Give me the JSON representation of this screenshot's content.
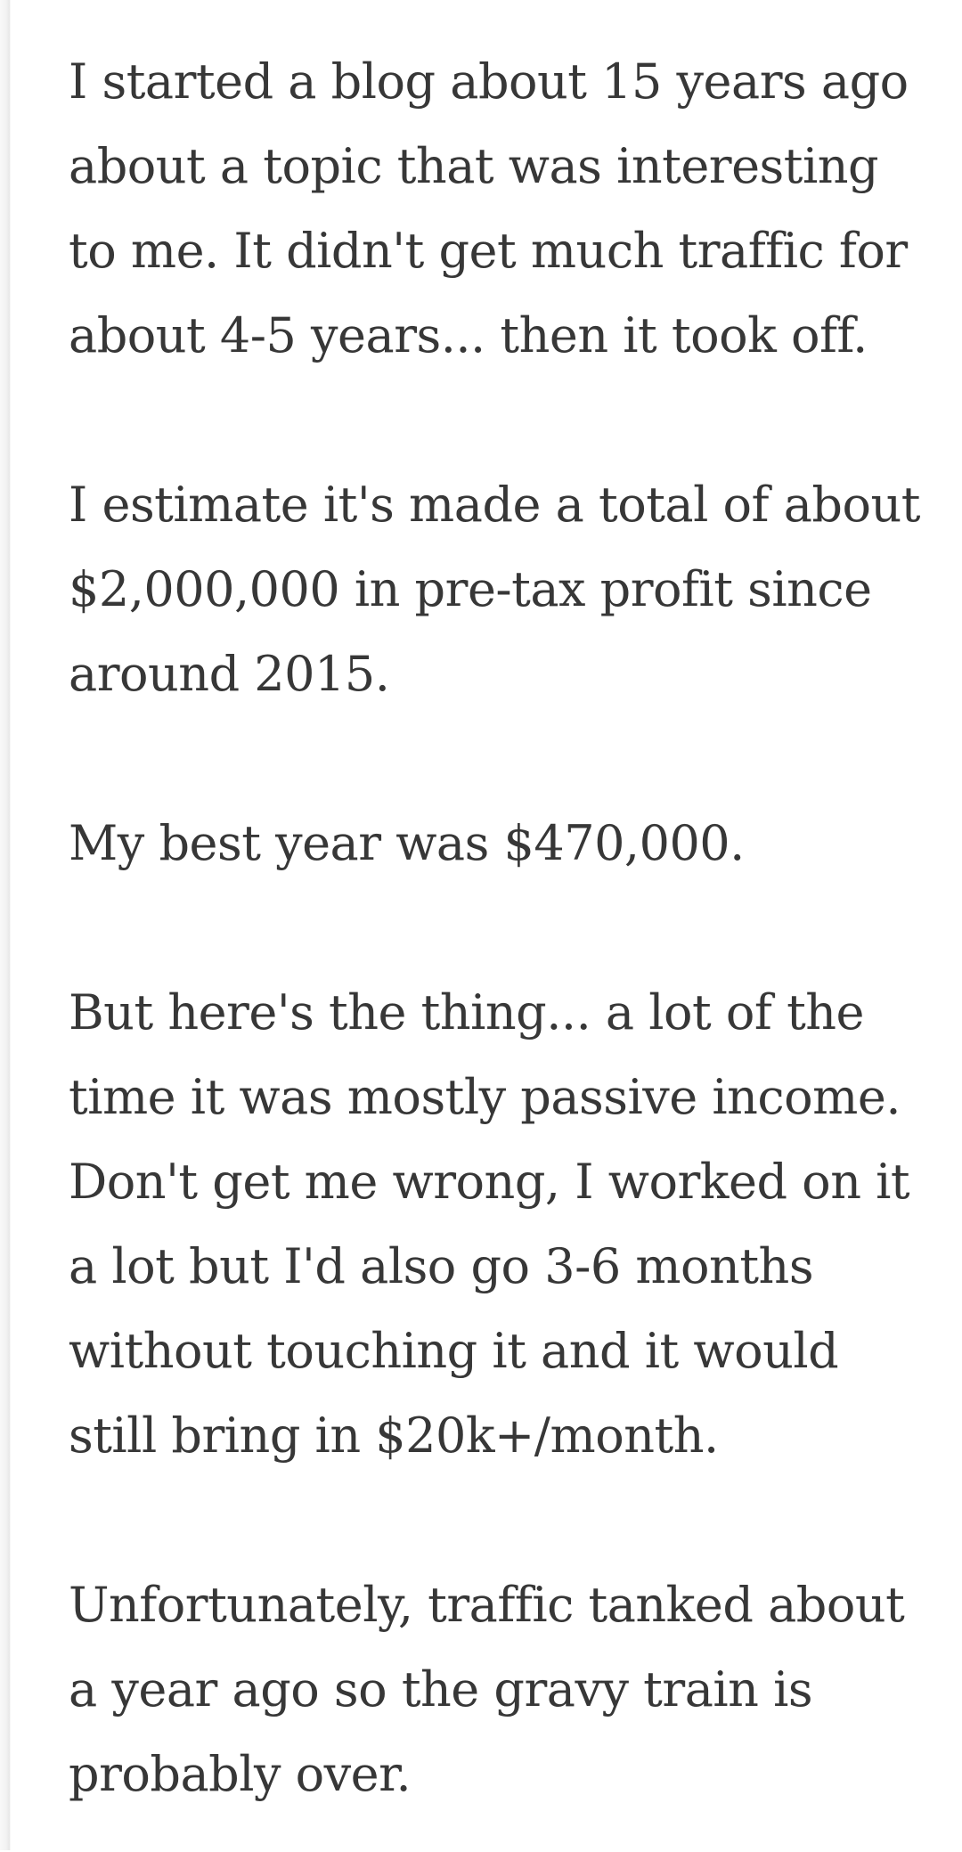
{
  "theme": {
    "text_color": "#373737",
    "background_color": "#ffffff",
    "left_strip_color": "#f2f2f2",
    "left_strip_edge_color": "#e7e7e7"
  },
  "article": {
    "paragraphs": [
      {
        "lines": [
          "I started a blog about 15 years ago",
          "about a topic that was interesting",
          "to me. It didn't get much traffic for",
          "about 4-5 years... then it took off."
        ]
      },
      {
        "lines": [
          "I estimate it's made a total of about",
          "$2,000,000 in pre-tax profit since",
          "around 2015."
        ]
      },
      {
        "lines": [
          "My best year was $470,000."
        ]
      },
      {
        "lines": [
          "But here's the thing... a lot of the",
          "time it was mostly passive income.",
          "Don't get me wrong, I worked on it",
          "a lot but I'd also go 3-6 months",
          "without touching it and it would",
          "still bring in $20k+/month."
        ]
      },
      {
        "lines": [
          "Unfortunately, traffic tanked about",
          "a year ago so the gravy train is",
          "probably over."
        ]
      }
    ]
  }
}
